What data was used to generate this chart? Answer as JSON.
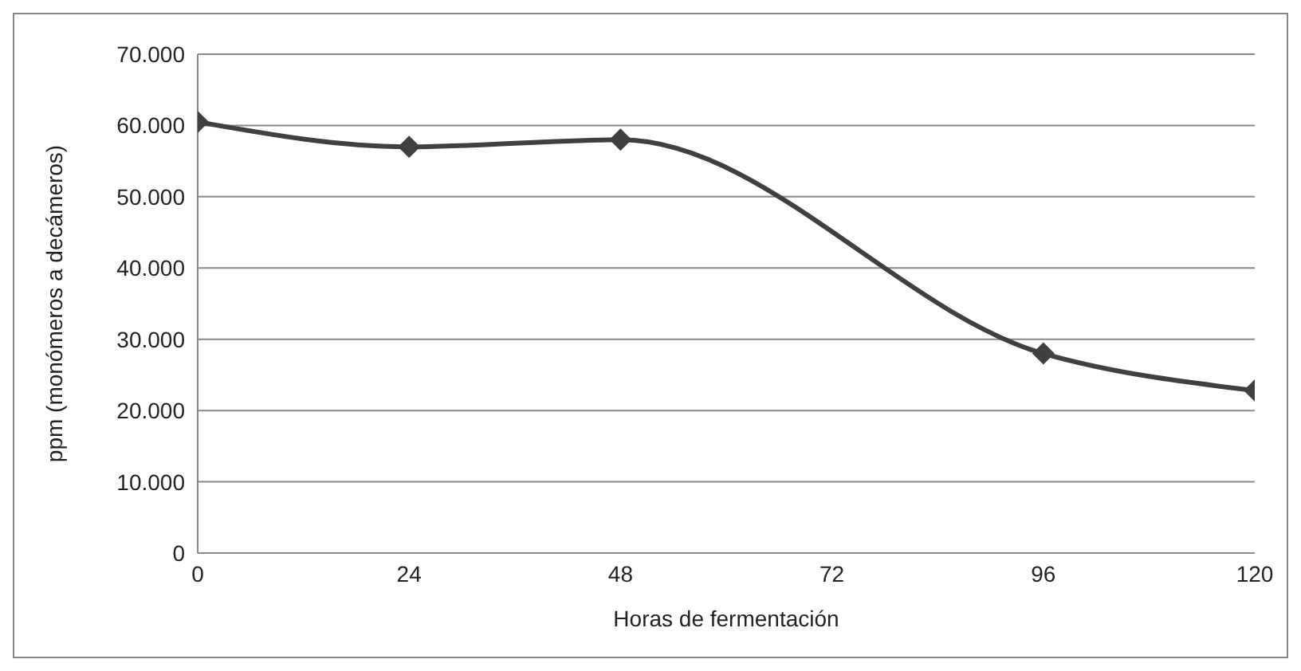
{
  "chart_data": {
    "type": "line",
    "xlabel": "Horas de fermentación",
    "ylabel": "ppm (monómeros a decámeros)",
    "x": [
      0,
      24,
      48,
      96,
      120
    ],
    "series": [
      {
        "color": "#404040",
        "values": [
          60500,
          57000,
          58000,
          28000,
          22800
        ]
      }
    ],
    "xlim": [
      0,
      120
    ],
    "xticks": [
      0,
      24,
      48,
      72,
      96,
      120
    ],
    "ylim": [
      0,
      70000
    ],
    "yticks": [
      0,
      {
        "value": 10000,
        "label": "10.000"
      },
      {
        "value": 20000,
        "label": "20.000"
      },
      {
        "value": 30000,
        "label": "30.000"
      },
      {
        "value": 40000,
        "label": "40.000"
      },
      {
        "value": 50000,
        "label": "50.000"
      },
      {
        "value": 60000,
        "label": "60.000"
      },
      {
        "value": 70000,
        "label": "70.000"
      }
    ],
    "grid": "y",
    "marker": "diamond",
    "line_style": "solid"
  }
}
